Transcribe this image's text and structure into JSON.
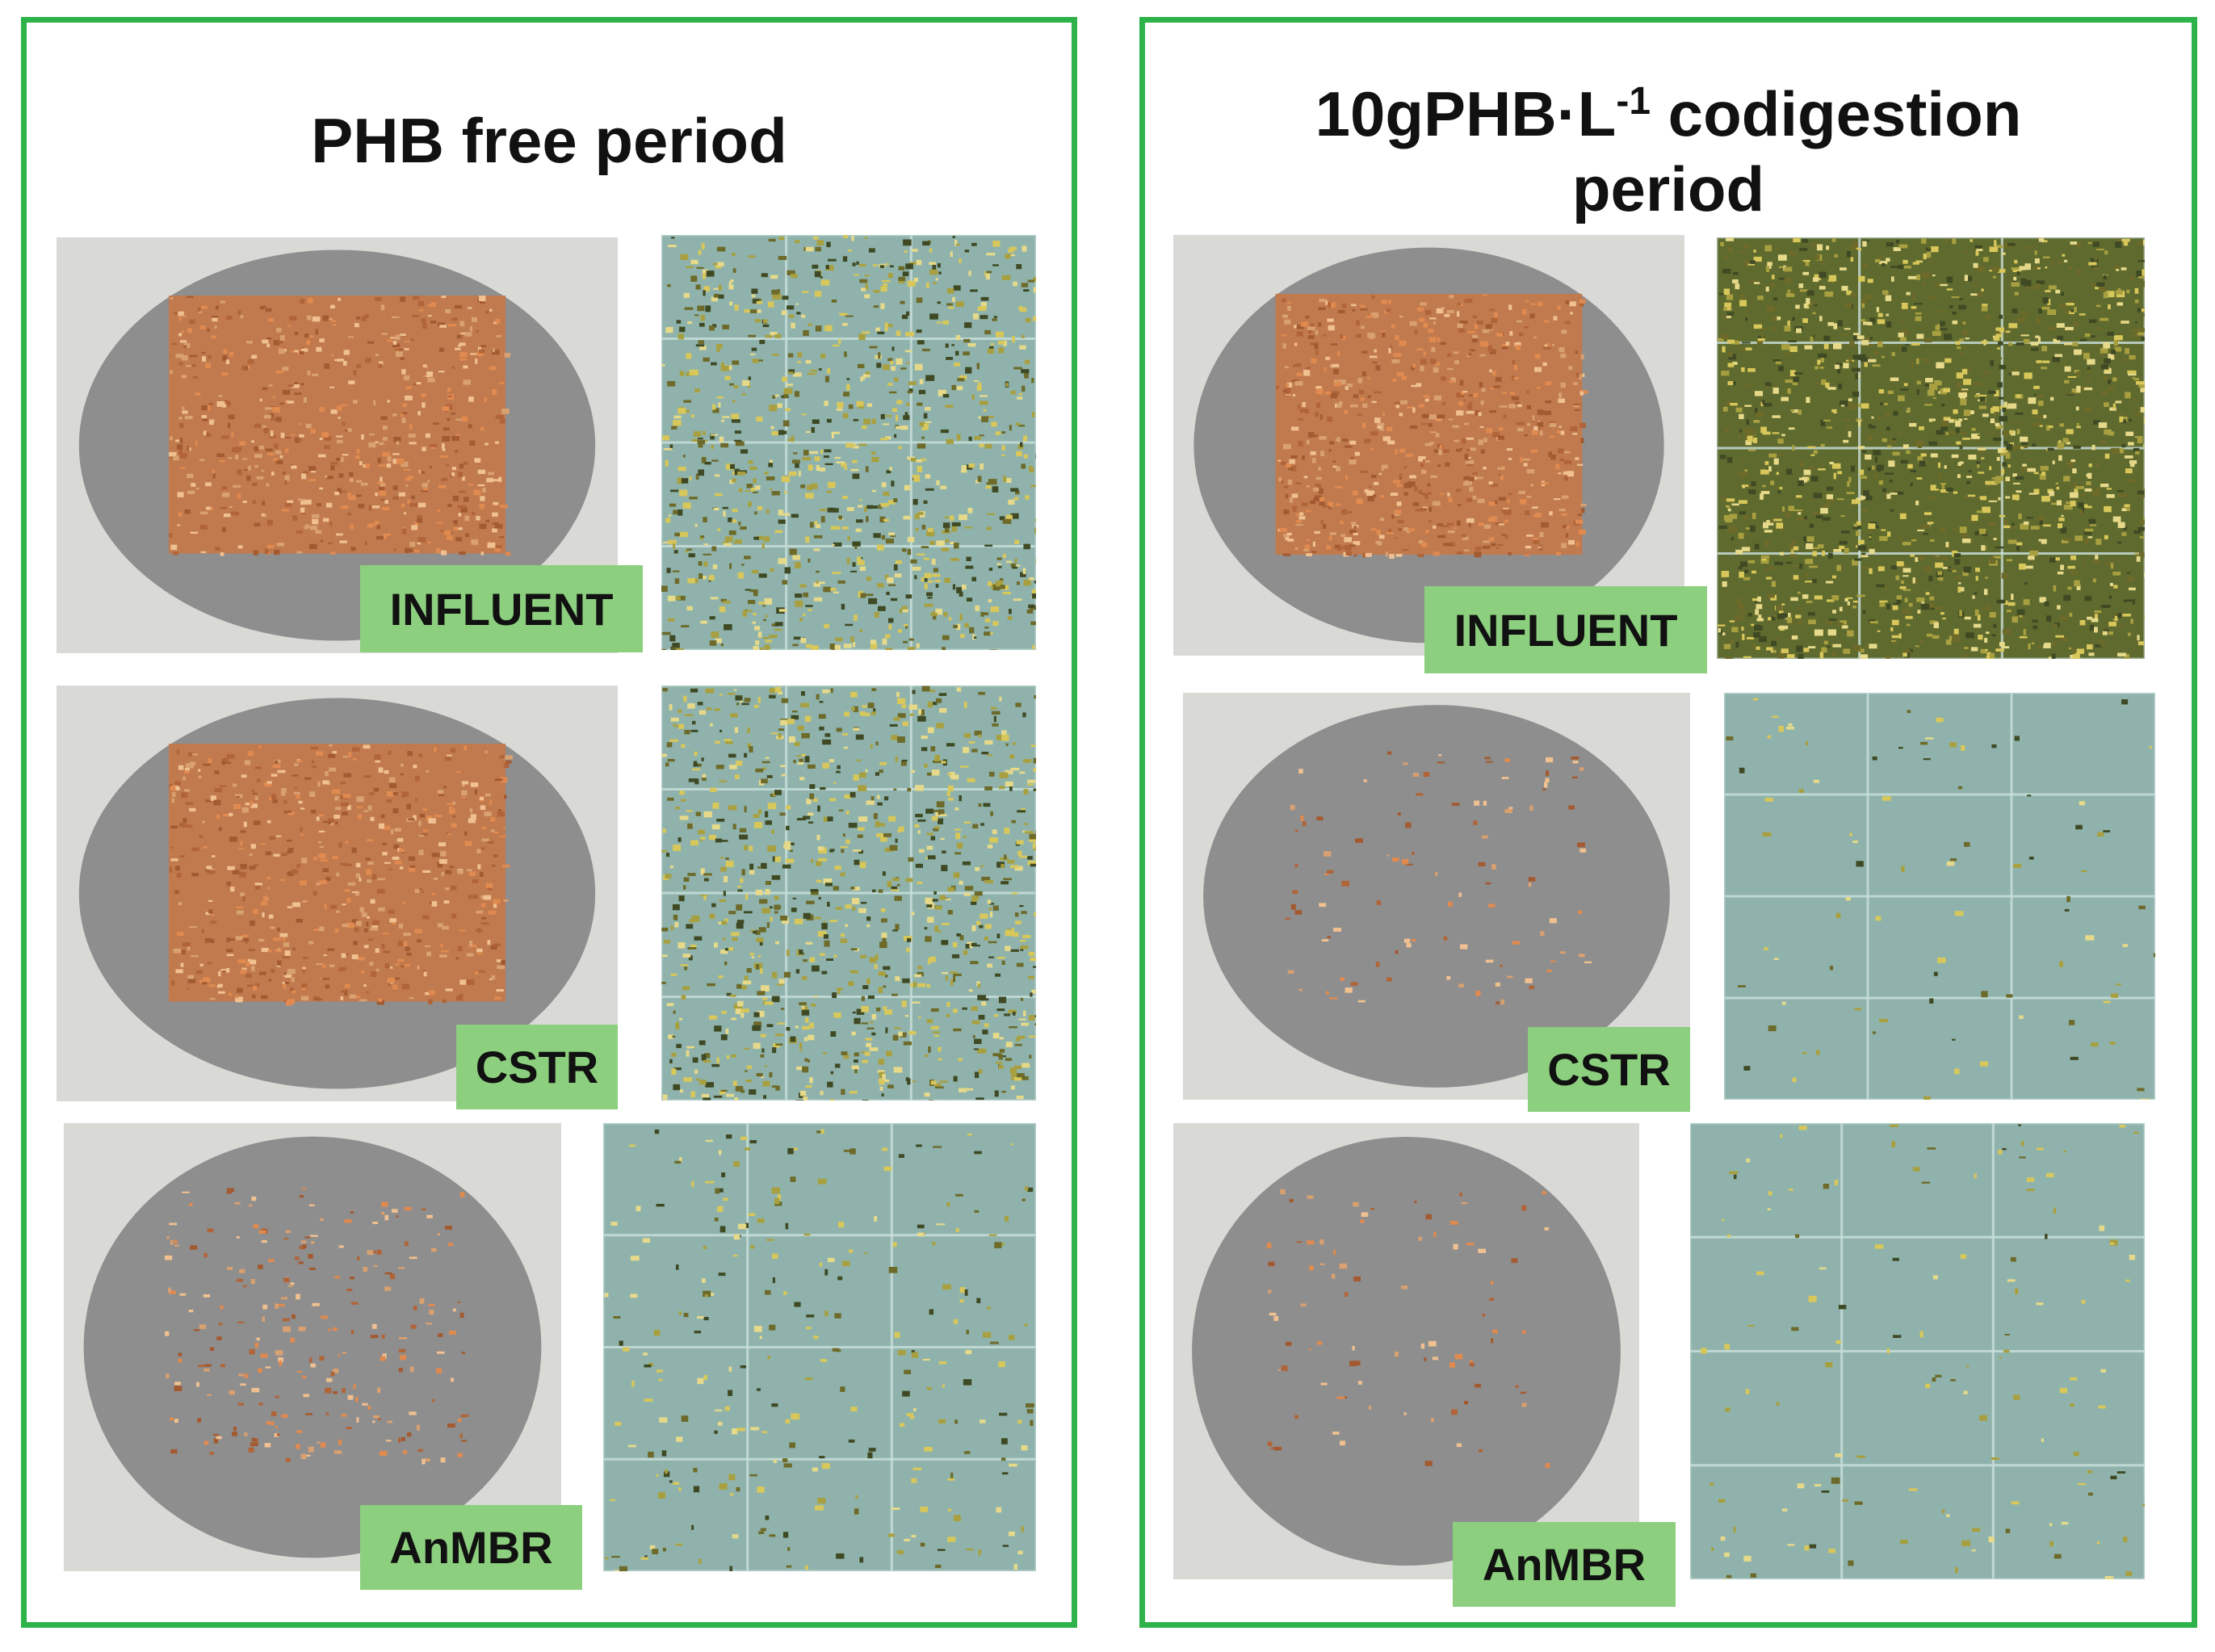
{
  "panels": [
    {
      "title": "PHB free period",
      "samples": [
        {
          "label": "INFLUENT"
        },
        {
          "label": "CSTR"
        },
        {
          "label": "AnMBR"
        }
      ]
    },
    {
      "title_main": "10gPHB·L",
      "title_sup": "-1",
      "title_rest": " codigestion",
      "title_line2": "period",
      "samples": [
        {
          "label": "INFLUENT"
        },
        {
          "label": "CSTR"
        },
        {
          "label": "AnMBR"
        }
      ]
    }
  ]
}
